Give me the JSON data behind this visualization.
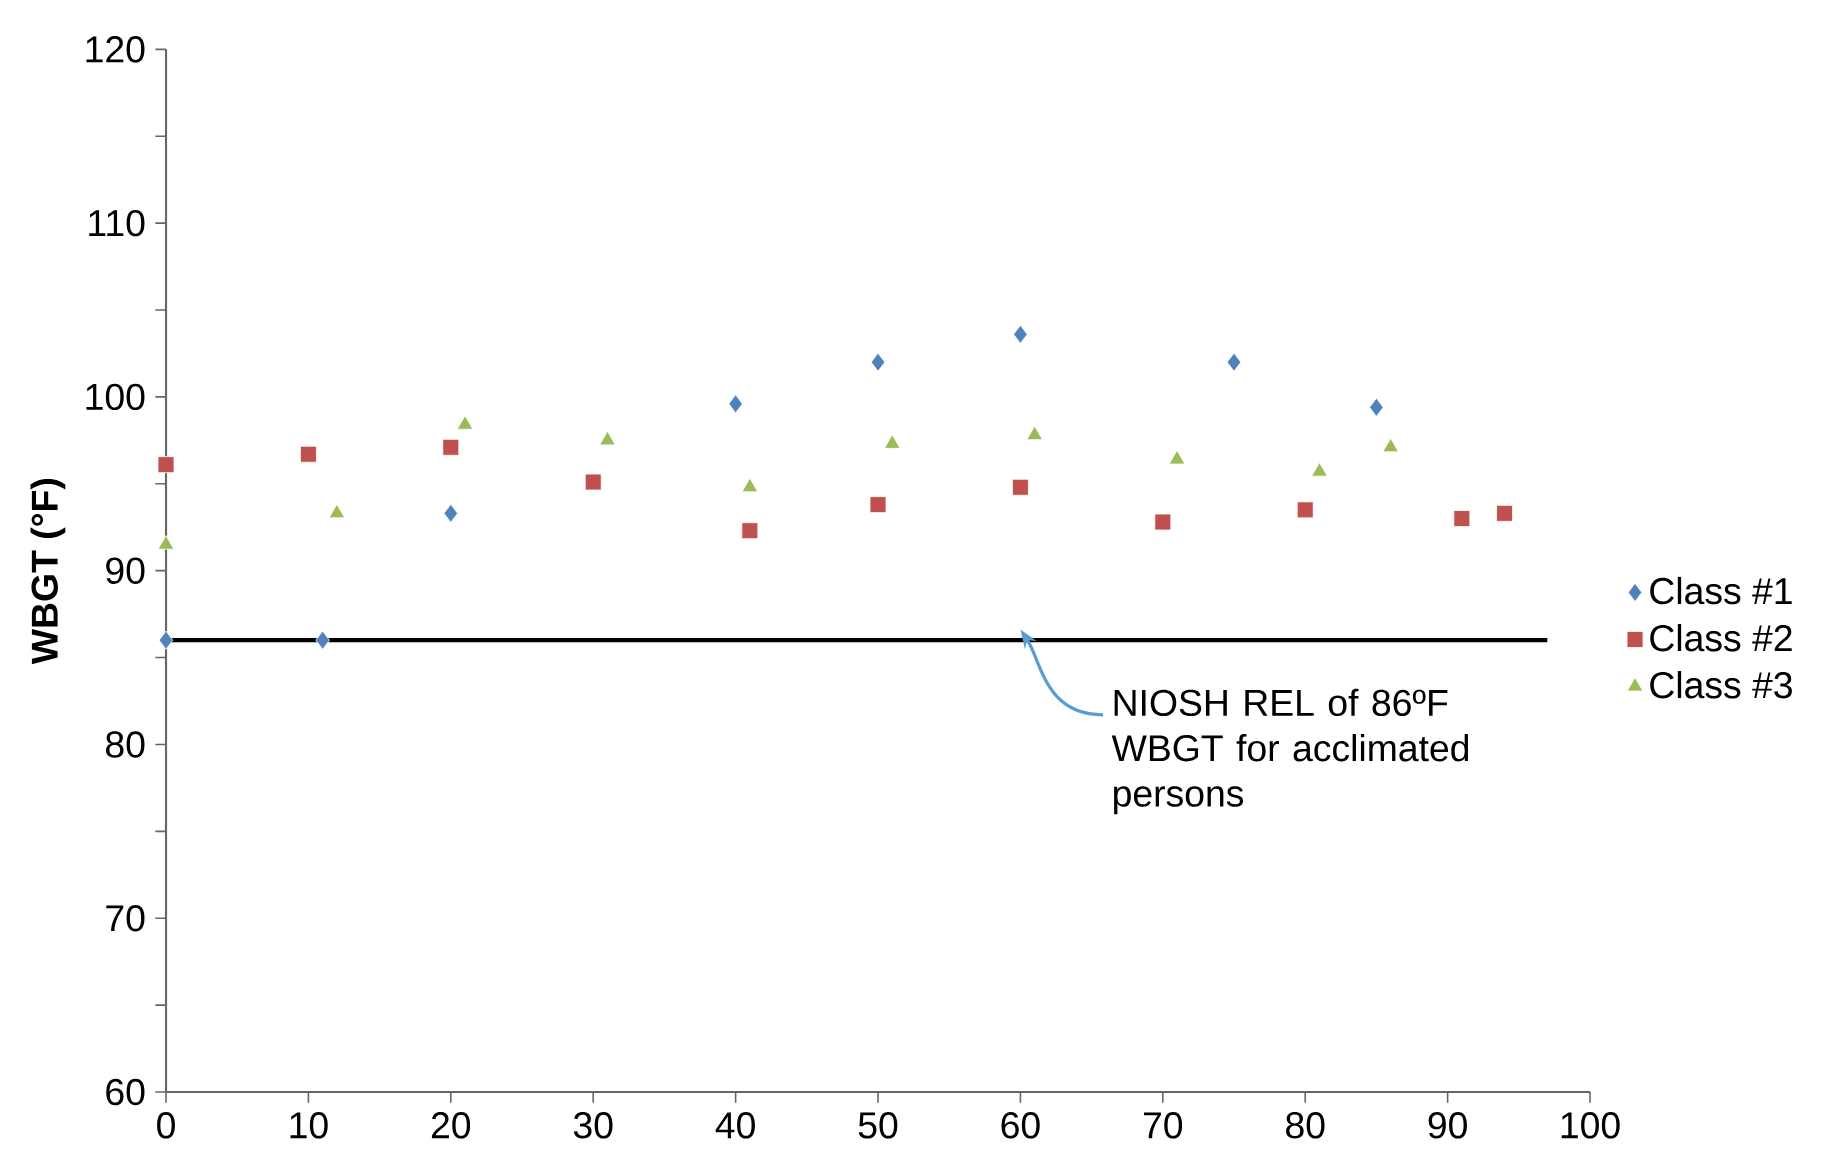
{
  "chart_data": {
    "type": "scatter",
    "ylabel": "WBGT (°F)",
    "xlim": [
      0,
      100
    ],
    "xticks": [
      0,
      10,
      20,
      30,
      40,
      50,
      60,
      70,
      80,
      90,
      100
    ],
    "ylim": [
      60,
      120
    ],
    "yticks": [
      60,
      {
        "value": 65,
        "label": null
      },
      70,
      {
        "value": 75,
        "label": null
      },
      80,
      {
        "value": 85,
        "label": null
      },
      90,
      {
        "value": 95,
        "label": null
      },
      100,
      {
        "value": 105,
        "label": null
      },
      110,
      {
        "value": 115,
        "label": null
      },
      120
    ],
    "grid": false,
    "legend": "right",
    "series": [
      {
        "name": "Class #1",
        "color": "#4f81bd",
        "marker": "diamond",
        "x": [
          0,
          11,
          20,
          40,
          50,
          60,
          75,
          85
        ],
        "values": [
          86.0,
          86.0,
          93.3,
          99.6,
          102.0,
          103.6,
          102.0,
          99.4
        ]
      },
      {
        "name": "Class #2",
        "color": "#c0504d",
        "marker": "square",
        "x": [
          0,
          10,
          20,
          30,
          41,
          50,
          60,
          70,
          80,
          91,
          94
        ],
        "values": [
          96.1,
          96.7,
          97.1,
          95.1,
          92.3,
          93.8,
          94.8,
          92.8,
          93.5,
          93.0,
          93.3
        ]
      },
      {
        "name": "Class #3",
        "color": "#9bbb59",
        "marker": "triangle",
        "x": [
          0,
          12,
          21,
          31,
          41,
          51,
          61,
          71,
          81,
          86
        ],
        "values": [
          91.5,
          93.3,
          98.4,
          97.5,
          94.8,
          97.3,
          97.8,
          96.4,
          95.7,
          97.1
        ]
      },
      {
        "type": "line",
        "color": "#000000",
        "marker": "none",
        "x": [
          0,
          97
        ],
        "values": [
          86,
          86
        ]
      }
    ],
    "annotations": [
      {
        "text": "NIOSH REL of 86ºF WBGT for acclimated persons",
        "x": 60,
        "y": 86
      }
    ]
  }
}
